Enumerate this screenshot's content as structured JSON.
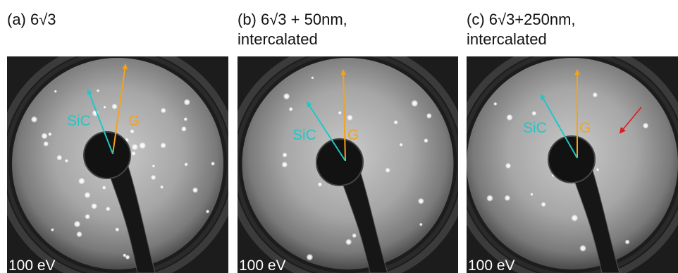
{
  "panels": [
    {
      "title": [
        "(a) 6√3"
      ],
      "sic_label": "SiC",
      "g_label": "G",
      "energy": "100 eV"
    },
    {
      "title": [
        "(b) 6√3 + 50nm,",
        "intercalated"
      ],
      "sic_label": "SiC",
      "g_label": "G",
      "energy": "100 eV"
    },
    {
      "title": [
        "(c) 6√3+250nm,",
        "intercalated"
      ],
      "sic_label": "SiC",
      "g_label": "G",
      "energy": "100 eV"
    }
  ]
}
